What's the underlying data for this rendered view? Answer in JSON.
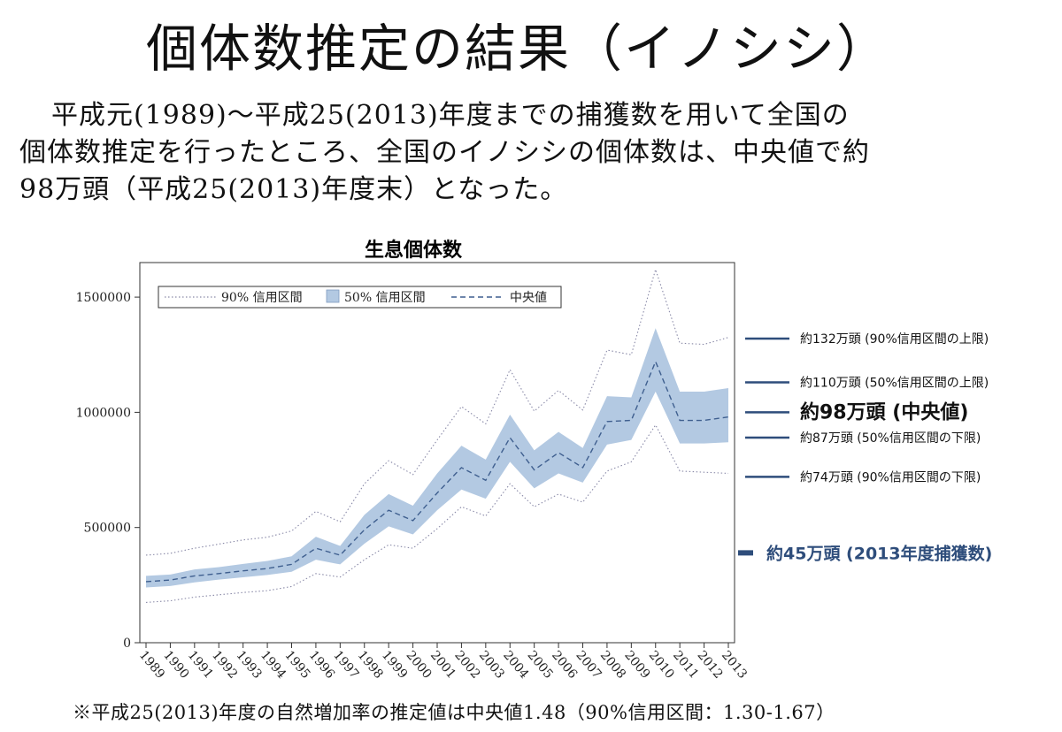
{
  "slide": {
    "title": "個体数推定の結果（イノシシ）",
    "intro_lines": [
      "平成元(1989)～平成25(2013)年度までの捕獲数を用いて全国の",
      "個体数推定を行ったところ、全国のイノシシの個体数は、中央値で約",
      "98万頭（平成25(2013)年度末）となった。"
    ],
    "footnote": "※平成25(2013)年度の自然増加率の推定値は中央値1.48（90%信用区間：1.30-1.67）"
  },
  "chart_data": {
    "type": "line",
    "title": "生息個体数",
    "xlabel": "",
    "ylabel": "",
    "x": [
      1989,
      1990,
      1991,
      1992,
      1993,
      1994,
      1995,
      1996,
      1997,
      1998,
      1999,
      2000,
      2001,
      2002,
      2003,
      2004,
      2005,
      2006,
      2007,
      2008,
      2009,
      2010,
      2011,
      2012,
      2013
    ],
    "ylim": [
      0,
      1650000
    ],
    "yticks": [
      0,
      500000,
      1000000,
      1500000
    ],
    "ytick_labels": [
      "0",
      "500000",
      "1000000",
      "1500000"
    ],
    "grid": false,
    "legend_position": "top-left",
    "legend": [
      "90% 信用区間",
      "50% 信用区間",
      "中央値"
    ],
    "series": [
      {
        "name": "中央値",
        "style": "dashed",
        "values": [
          265000,
          272000,
          290000,
          300000,
          312000,
          322000,
          340000,
          410000,
          380000,
          490000,
          575000,
          530000,
          650000,
          760000,
          705000,
          890000,
          750000,
          825000,
          760000,
          960000,
          965000,
          1220000,
          965000,
          965000,
          980000
        ]
      },
      {
        "name": "50% 信用区間 上限",
        "style": "band-upper",
        "values": [
          290000,
          296000,
          318000,
          328000,
          342000,
          355000,
          375000,
          460000,
          420000,
          555000,
          645000,
          595000,
          735000,
          855000,
          795000,
          990000,
          835000,
          915000,
          845000,
          1070000,
          1065000,
          1365000,
          1090000,
          1090000,
          1105000
        ]
      },
      {
        "name": "50% 信用区間 下限",
        "style": "band-lower",
        "values": [
          240000,
          246000,
          262000,
          274000,
          284000,
          294000,
          308000,
          360000,
          340000,
          430000,
          505000,
          470000,
          575000,
          665000,
          625000,
          785000,
          670000,
          735000,
          695000,
          860000,
          880000,
          1090000,
          865000,
          865000,
          870000
        ]
      },
      {
        "name": "90% 信用区間 上限",
        "style": "dotted",
        "values": [
          380000,
          388000,
          410000,
          428000,
          446000,
          458000,
          485000,
          570000,
          525000,
          690000,
          790000,
          730000,
          880000,
          1025000,
          950000,
          1185000,
          1005000,
          1095000,
          1010000,
          1270000,
          1250000,
          1620000,
          1300000,
          1295000,
          1325000
        ]
      },
      {
        "name": "90% 信用区間 下限",
        "style": "dotted",
        "values": [
          175000,
          182000,
          198000,
          208000,
          218000,
          226000,
          244000,
          300000,
          285000,
          360000,
          425000,
          410000,
          495000,
          590000,
          550000,
          690000,
          590000,
          645000,
          610000,
          745000,
          785000,
          945000,
          745000,
          740000,
          735000
        ]
      }
    ],
    "annotations": [
      {
        "label": "約132万頭 (90%信用区間の上限)",
        "value": 1320000
      },
      {
        "label": "約110万頭 (50%信用区間の上限)",
        "value": 1130000
      },
      {
        "label": "約98万頭 (中央値)",
        "value": 1000000,
        "emphasis": "large"
      },
      {
        "label": "約87万頭 (50%信用区間の下限)",
        "value": 890000
      },
      {
        "label": "約74万頭 (90%信用区間の下限)",
        "value": 720000
      },
      {
        "label": "約45万頭 (2013年度捕獲数)",
        "value": 390000,
        "emphasis": "capture"
      }
    ],
    "colors": {
      "band": "#b3c9e2",
      "median": "#3f5f8f",
      "ci90": "#8a8aa8",
      "annotation_line": "#2e4d7b",
      "capture": "#2e4d7b"
    }
  }
}
